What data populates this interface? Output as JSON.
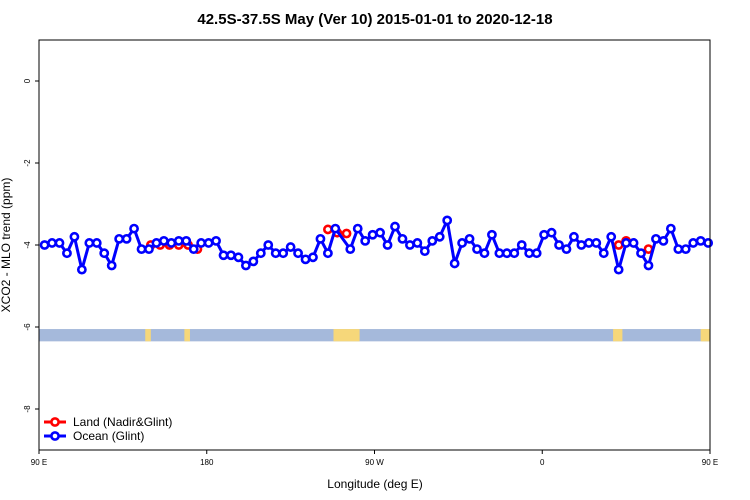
{
  "chart_data": {
    "type": "line",
    "title": "42.5S-37.5S May (Ver 10)   2015-01-01 to 2020-12-18",
    "xlabel": "Longitude (deg E)",
    "ylabel": "XCO2 - MLO trend (ppm)",
    "xlim": [
      90,
      450
    ],
    "ylim": [
      -9,
      1
    ],
    "x_ticks": [
      {
        "value": 90,
        "label": "90 E"
      },
      {
        "value": 180,
        "label": "180"
      },
      {
        "value": 270,
        "label": "90 W"
      },
      {
        "value": 360,
        "label": "0"
      },
      {
        "value": 450,
        "label": "90 E"
      },
      {
        "value": 540,
        "label": "180"
      }
    ],
    "y_ticks": [
      {
        "value": 0,
        "label": "0"
      },
      {
        "value": -2,
        "label": "-2"
      },
      {
        "value": -4,
        "label": "-4"
      },
      {
        "value": -6,
        "label": "-6"
      },
      {
        "value": -8,
        "label": "-8"
      }
    ],
    "legend_position": "bottom-left",
    "series": [
      {
        "name": "Land (Nadir&Glint)",
        "color": "#ff0000",
        "segments": [
          [
            [
              150,
              -4.0
            ],
            [
              155,
              -4.0
            ],
            [
              160,
              -4.0
            ],
            [
              165,
              -4.0
            ],
            [
              170,
              -4.0
            ],
            [
              175,
              -4.1
            ]
          ],
          [
            [
              245,
              -3.62
            ],
            [
              250,
              -3.7
            ],
            [
              255,
              -3.72
            ]
          ],
          [
            [
              401,
              -4.0
            ],
            [
              405,
              -3.9
            ]
          ],
          [
            [
              417,
              -4.1
            ]
          ]
        ]
      },
      {
        "name": "Ocean (Glint)",
        "color": "#0000ff",
        "points": [
          [
            93,
            -4.0
          ],
          [
            97,
            -3.95
          ],
          [
            101,
            -3.95
          ],
          [
            105,
            -4.2
          ],
          [
            109,
            -3.8
          ],
          [
            113,
            -4.6
          ],
          [
            117,
            -3.95
          ],
          [
            121,
            -3.95
          ],
          [
            125,
            -4.2
          ],
          [
            129,
            -4.5
          ],
          [
            133,
            -3.85
          ],
          [
            137,
            -3.85
          ],
          [
            141,
            -3.6
          ],
          [
            145,
            -4.1
          ],
          [
            149,
            -4.1
          ],
          [
            153,
            -3.95
          ],
          [
            157,
            -3.9
          ],
          [
            161,
            -3.95
          ],
          [
            165,
            -3.9
          ],
          [
            169,
            -3.9
          ],
          [
            173,
            -4.1
          ],
          [
            177,
            -3.95
          ],
          [
            181,
            -3.95
          ],
          [
            185,
            -3.9
          ],
          [
            189,
            -4.25
          ],
          [
            193,
            -4.25
          ],
          [
            197,
            -4.3
          ],
          [
            201,
            -4.5
          ],
          [
            205,
            -4.4
          ],
          [
            209,
            -4.2
          ],
          [
            213,
            -4.0
          ],
          [
            217,
            -4.2
          ],
          [
            221,
            -4.2
          ],
          [
            225,
            -4.05
          ],
          [
            229,
            -4.2
          ],
          [
            233,
            -4.35
          ],
          [
            237,
            -4.3
          ],
          [
            241,
            -3.85
          ],
          [
            245,
            -4.2
          ],
          [
            249,
            -3.6
          ],
          [
            257,
            -4.1
          ],
          [
            261,
            -3.6
          ],
          [
            265,
            -3.9
          ],
          [
            269,
            -3.75
          ],
          [
            273,
            -3.7
          ],
          [
            277,
            -4.0
          ],
          [
            281,
            -3.55
          ],
          [
            285,
            -3.85
          ],
          [
            289,
            -4.0
          ],
          [
            293,
            -3.95
          ],
          [
            297,
            -4.15
          ],
          [
            301,
            -3.9
          ],
          [
            305,
            -3.8
          ],
          [
            309,
            -3.4
          ],
          [
            313,
            -4.45
          ],
          [
            317,
            -3.95
          ],
          [
            321,
            -3.85
          ],
          [
            325,
            -4.1
          ],
          [
            329,
            -4.2
          ],
          [
            333,
            -3.75
          ],
          [
            337,
            -4.2
          ],
          [
            341,
            -4.2
          ],
          [
            345,
            -4.2
          ],
          [
            349,
            -4.0
          ],
          [
            353,
            -4.2
          ],
          [
            357,
            -4.2
          ],
          [
            361,
            -3.75
          ],
          [
            365,
            -3.7
          ],
          [
            369,
            -4.0
          ],
          [
            373,
            -4.1
          ],
          [
            377,
            -3.8
          ],
          [
            381,
            -4.0
          ],
          [
            385,
            -3.95
          ],
          [
            389,
            -3.95
          ],
          [
            393,
            -4.2
          ],
          [
            397,
            -3.8
          ],
          [
            401,
            -4.6
          ],
          [
            405,
            -3.95
          ],
          [
            409,
            -3.95
          ],
          [
            413,
            -4.2
          ],
          [
            417,
            -4.5
          ],
          [
            421,
            -3.85
          ],
          [
            425,
            -3.9
          ],
          [
            429,
            -3.6
          ],
          [
            433,
            -4.1
          ],
          [
            437,
            -4.1
          ],
          [
            441,
            -3.95
          ],
          [
            445,
            -3.9
          ],
          [
            449,
            -3.95
          ]
        ]
      }
    ],
    "surface_strip": {
      "y_range": [
        -6.35,
        -6.05
      ],
      "ocean_color": "#a5b9db",
      "land_color": "#f6d77a",
      "land_ranges": [
        [
          147,
          150
        ],
        [
          168,
          171
        ],
        [
          248,
          262
        ],
        [
          398,
          403
        ],
        [
          445,
          450
        ]
      ]
    }
  }
}
